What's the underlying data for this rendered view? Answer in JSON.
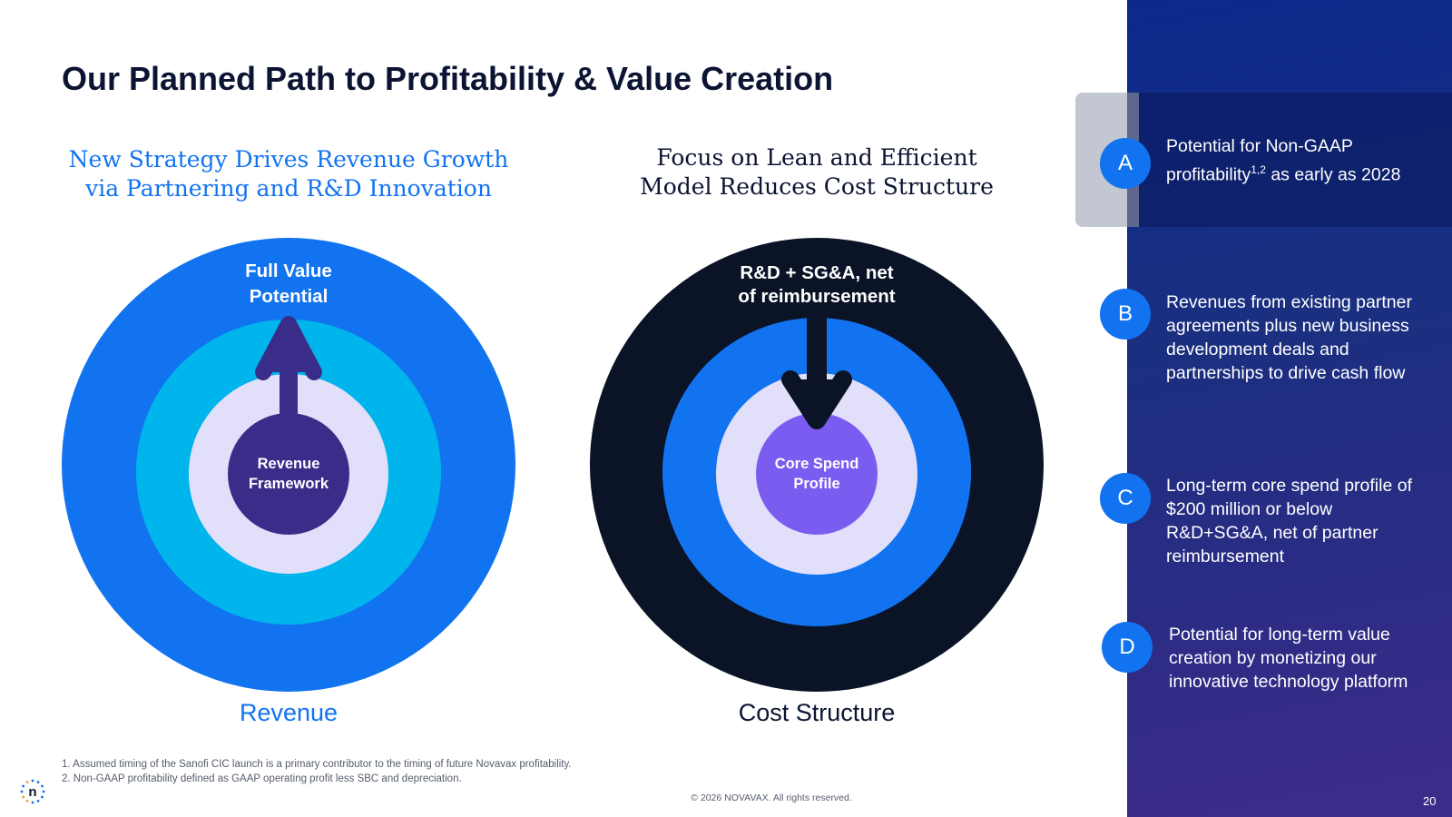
{
  "title": "Our Planned Path to Profitability & Value Creation",
  "left": {
    "subhead_lines": [
      "New Strategy Drives Revenue Growth",
      "via Partnering and R&D Innovation"
    ],
    "outer_label_lines": [
      "Full Value",
      "Potential"
    ],
    "core_label_lines": [
      "Revenue",
      "Framework"
    ],
    "caption": "Revenue"
  },
  "right": {
    "subhead_lines": [
      "Focus on Lean and Efficient",
      "Model Reduces Cost Structure"
    ],
    "outer_label_lines": [
      "R&D + SG&A, net",
      "of reimbursement"
    ],
    "core_label_lines": [
      "Core Spend",
      "Profile"
    ],
    "caption": "Cost Structure"
  },
  "points": [
    {
      "letter": "A",
      "text_pre": "Potential for Non-GAAP profitability",
      "superscript": "1,2",
      "text_post": " as early as 2028"
    },
    {
      "letter": "B",
      "text": "Revenues from existing partner agreements plus new business development deals and partnerships to drive cash flow"
    },
    {
      "letter": "C",
      "text": "Long-term core spend profile of $200 million or below R&D+SG&A, net of partner reimbursement"
    },
    {
      "letter": "D",
      "text": "Potential for long-term value creation by monetizing our innovative technology platform"
    }
  ],
  "footnotes": [
    "1. Assumed timing of the Sanofi CIC launch is a primary contributor to the timing of future Novavax profitability.",
    "2. Non-GAAP profitability defined as GAAP operating profit less SBC and depreciation."
  ],
  "copyright": "© 2026 NOVAVAX. All rights reserved.",
  "page_number": "20",
  "logo_letter": "n",
  "colors": {
    "navy": "#0b1432",
    "blue": "#1273f0",
    "cyan": "#00b4ec",
    "lavender": "#e2dffb",
    "indigo": "#3a2d8a",
    "violet": "#7b5cf0",
    "panel": "#1a2f80"
  }
}
